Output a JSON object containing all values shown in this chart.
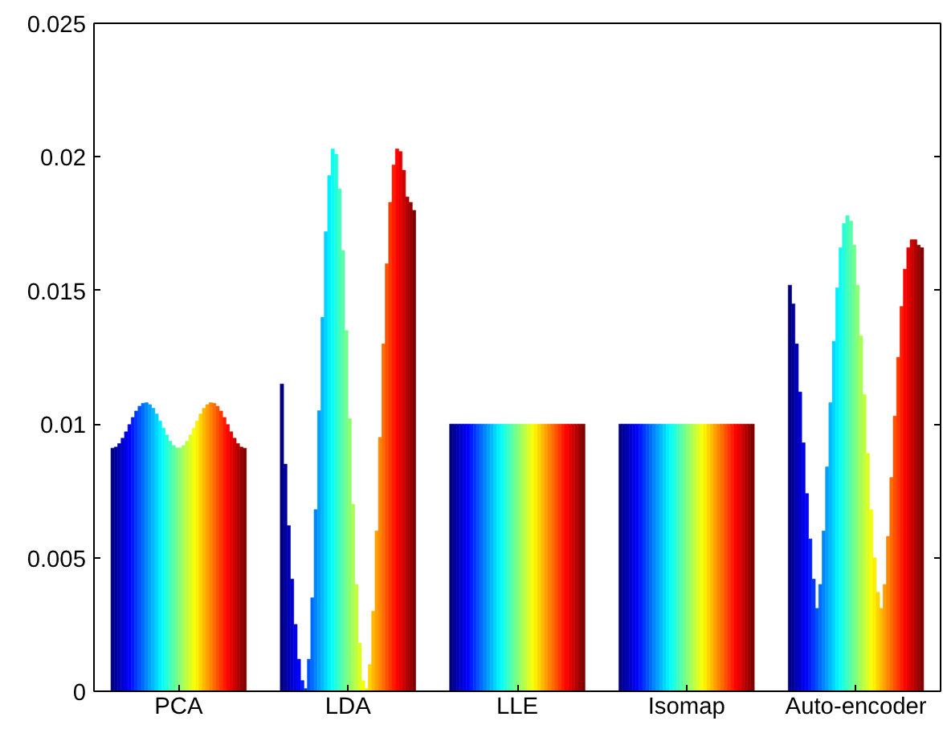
{
  "chart_data": {
    "type": "bar",
    "categories": [
      "PCA",
      "LDA",
      "LLE",
      "Isomap",
      "Auto-encoder"
    ],
    "ylim": [
      0,
      0.025
    ],
    "yticks": [
      0,
      0.005,
      0.01,
      0.015,
      0.02,
      0.025
    ],
    "series": [
      {
        "color": "#000080",
        "values": [
          0.0091,
          0.0115,
          0.01,
          0.01,
          0.0152
        ]
      },
      {
        "color": "#00009a",
        "values": [
          0.00914,
          0.0085,
          0.01,
          0.01,
          0.0145
        ]
      },
      {
        "color": "#0000b4",
        "values": [
          0.00927,
          0.0062,
          0.01,
          0.01,
          0.013
        ]
      },
      {
        "color": "#0000ce",
        "values": [
          0.00947,
          0.0042,
          0.01,
          0.01,
          0.0112
        ]
      },
      {
        "color": "#0000e8",
        "values": [
          0.00971,
          0.0025,
          0.01,
          0.01,
          0.0093
        ]
      },
      {
        "color": "#0003ff",
        "values": [
          0.00998,
          0.0012,
          0.01,
          0.01,
          0.0074
        ]
      },
      {
        "color": "#001dff",
        "values": [
          0.01025,
          0.0004,
          0.01,
          0.01,
          0.0057
        ]
      },
      {
        "color": "#0038ff",
        "values": [
          0.01049,
          0.0001,
          0.01,
          0.01,
          0.0042
        ]
      },
      {
        "color": "#0052ff",
        "values": [
          0.01067,
          0.0012,
          0.01,
          0.01,
          0.0031
        ]
      },
      {
        "color": "#006cff",
        "values": [
          0.01078,
          0.0035,
          0.01,
          0.01,
          0.004
        ]
      },
      {
        "color": "#0086ff",
        "values": [
          0.0108,
          0.0068,
          0.01,
          0.01,
          0.006
        ]
      },
      {
        "color": "#00a0ff",
        "values": [
          0.01073,
          0.0105,
          0.01,
          0.01,
          0.0084
        ]
      },
      {
        "color": "#00baff",
        "values": [
          0.01059,
          0.014,
          0.01,
          0.01,
          0.0108
        ]
      },
      {
        "color": "#00d5ff",
        "values": [
          0.01038,
          0.0172,
          0.01,
          0.01,
          0.0131
        ]
      },
      {
        "color": "#00efff",
        "values": [
          0.01012,
          0.0193,
          0.01,
          0.01,
          0.0151
        ]
      },
      {
        "color": "#0afff5",
        "values": [
          0.00985,
          0.0203,
          0.01,
          0.01,
          0.0166
        ]
      },
      {
        "color": "#24ffdb",
        "values": [
          0.00959,
          0.0201,
          0.01,
          0.01,
          0.0175
        ]
      },
      {
        "color": "#3effc1",
        "values": [
          0.00936,
          0.0188,
          0.01,
          0.01,
          0.0178
        ]
      },
      {
        "color": "#58ffa7",
        "values": [
          0.0092,
          0.0165,
          0.01,
          0.01,
          0.0176
        ]
      },
      {
        "color": "#73ff8c",
        "values": [
          0.00911,
          0.0135,
          0.01,
          0.01,
          0.0167
        ]
      },
      {
        "color": "#8cff73",
        "values": [
          0.00911,
          0.0102,
          0.01,
          0.01,
          0.0152
        ]
      },
      {
        "color": "#a7ff58",
        "values": [
          0.0092,
          0.007,
          0.01,
          0.01,
          0.0133
        ]
      },
      {
        "color": "#c1ff3e",
        "values": [
          0.00936,
          0.004,
          0.01,
          0.01,
          0.0111
        ]
      },
      {
        "color": "#dbff24",
        "values": [
          0.00959,
          0.0018,
          0.01,
          0.01,
          0.0089
        ]
      },
      {
        "color": "#f5ff0a",
        "values": [
          0.00985,
          0.0004,
          0.01,
          0.01,
          0.0068
        ]
      },
      {
        "color": "#ffef00",
        "values": [
          0.01012,
          0.0001,
          0.01,
          0.01,
          0.005
        ]
      },
      {
        "color": "#ffd500",
        "values": [
          0.01038,
          0.001,
          0.01,
          0.01,
          0.0037
        ]
      },
      {
        "color": "#ffba00",
        "values": [
          0.01059,
          0.003,
          0.01,
          0.01,
          0.0031
        ]
      },
      {
        "color": "#ffa000",
        "values": [
          0.01073,
          0.006,
          0.01,
          0.01,
          0.004
        ]
      },
      {
        "color": "#ff8600",
        "values": [
          0.0108,
          0.0095,
          0.01,
          0.01,
          0.0058
        ]
      },
      {
        "color": "#ff6c00",
        "values": [
          0.01078,
          0.013,
          0.01,
          0.01,
          0.008
        ]
      },
      {
        "color": "#ff5200",
        "values": [
          0.01067,
          0.016,
          0.01,
          0.01,
          0.0103
        ]
      },
      {
        "color": "#ff3800",
        "values": [
          0.01049,
          0.0183,
          0.01,
          0.01,
          0.0125
        ]
      },
      {
        "color": "#ff1d00",
        "values": [
          0.01025,
          0.0197,
          0.01,
          0.01,
          0.0144
        ]
      },
      {
        "color": "#ff0300",
        "values": [
          0.00998,
          0.0203,
          0.01,
          0.01,
          0.0158
        ]
      },
      {
        "color": "#e80000",
        "values": [
          0.00971,
          0.0202,
          0.01,
          0.01,
          0.0166
        ]
      },
      {
        "color": "#ce0000",
        "values": [
          0.00947,
          0.0195,
          0.01,
          0.01,
          0.0169
        ]
      },
      {
        "color": "#b40000",
        "values": [
          0.00927,
          0.0185,
          0.01,
          0.01,
          0.0169
        ]
      },
      {
        "color": "#9a0000",
        "values": [
          0.00914,
          0.0183,
          0.01,
          0.01,
          0.0167
        ]
      },
      {
        "color": "#800000",
        "values": [
          0.0091,
          0.018,
          0.01,
          0.01,
          0.0166
        ]
      }
    ]
  }
}
